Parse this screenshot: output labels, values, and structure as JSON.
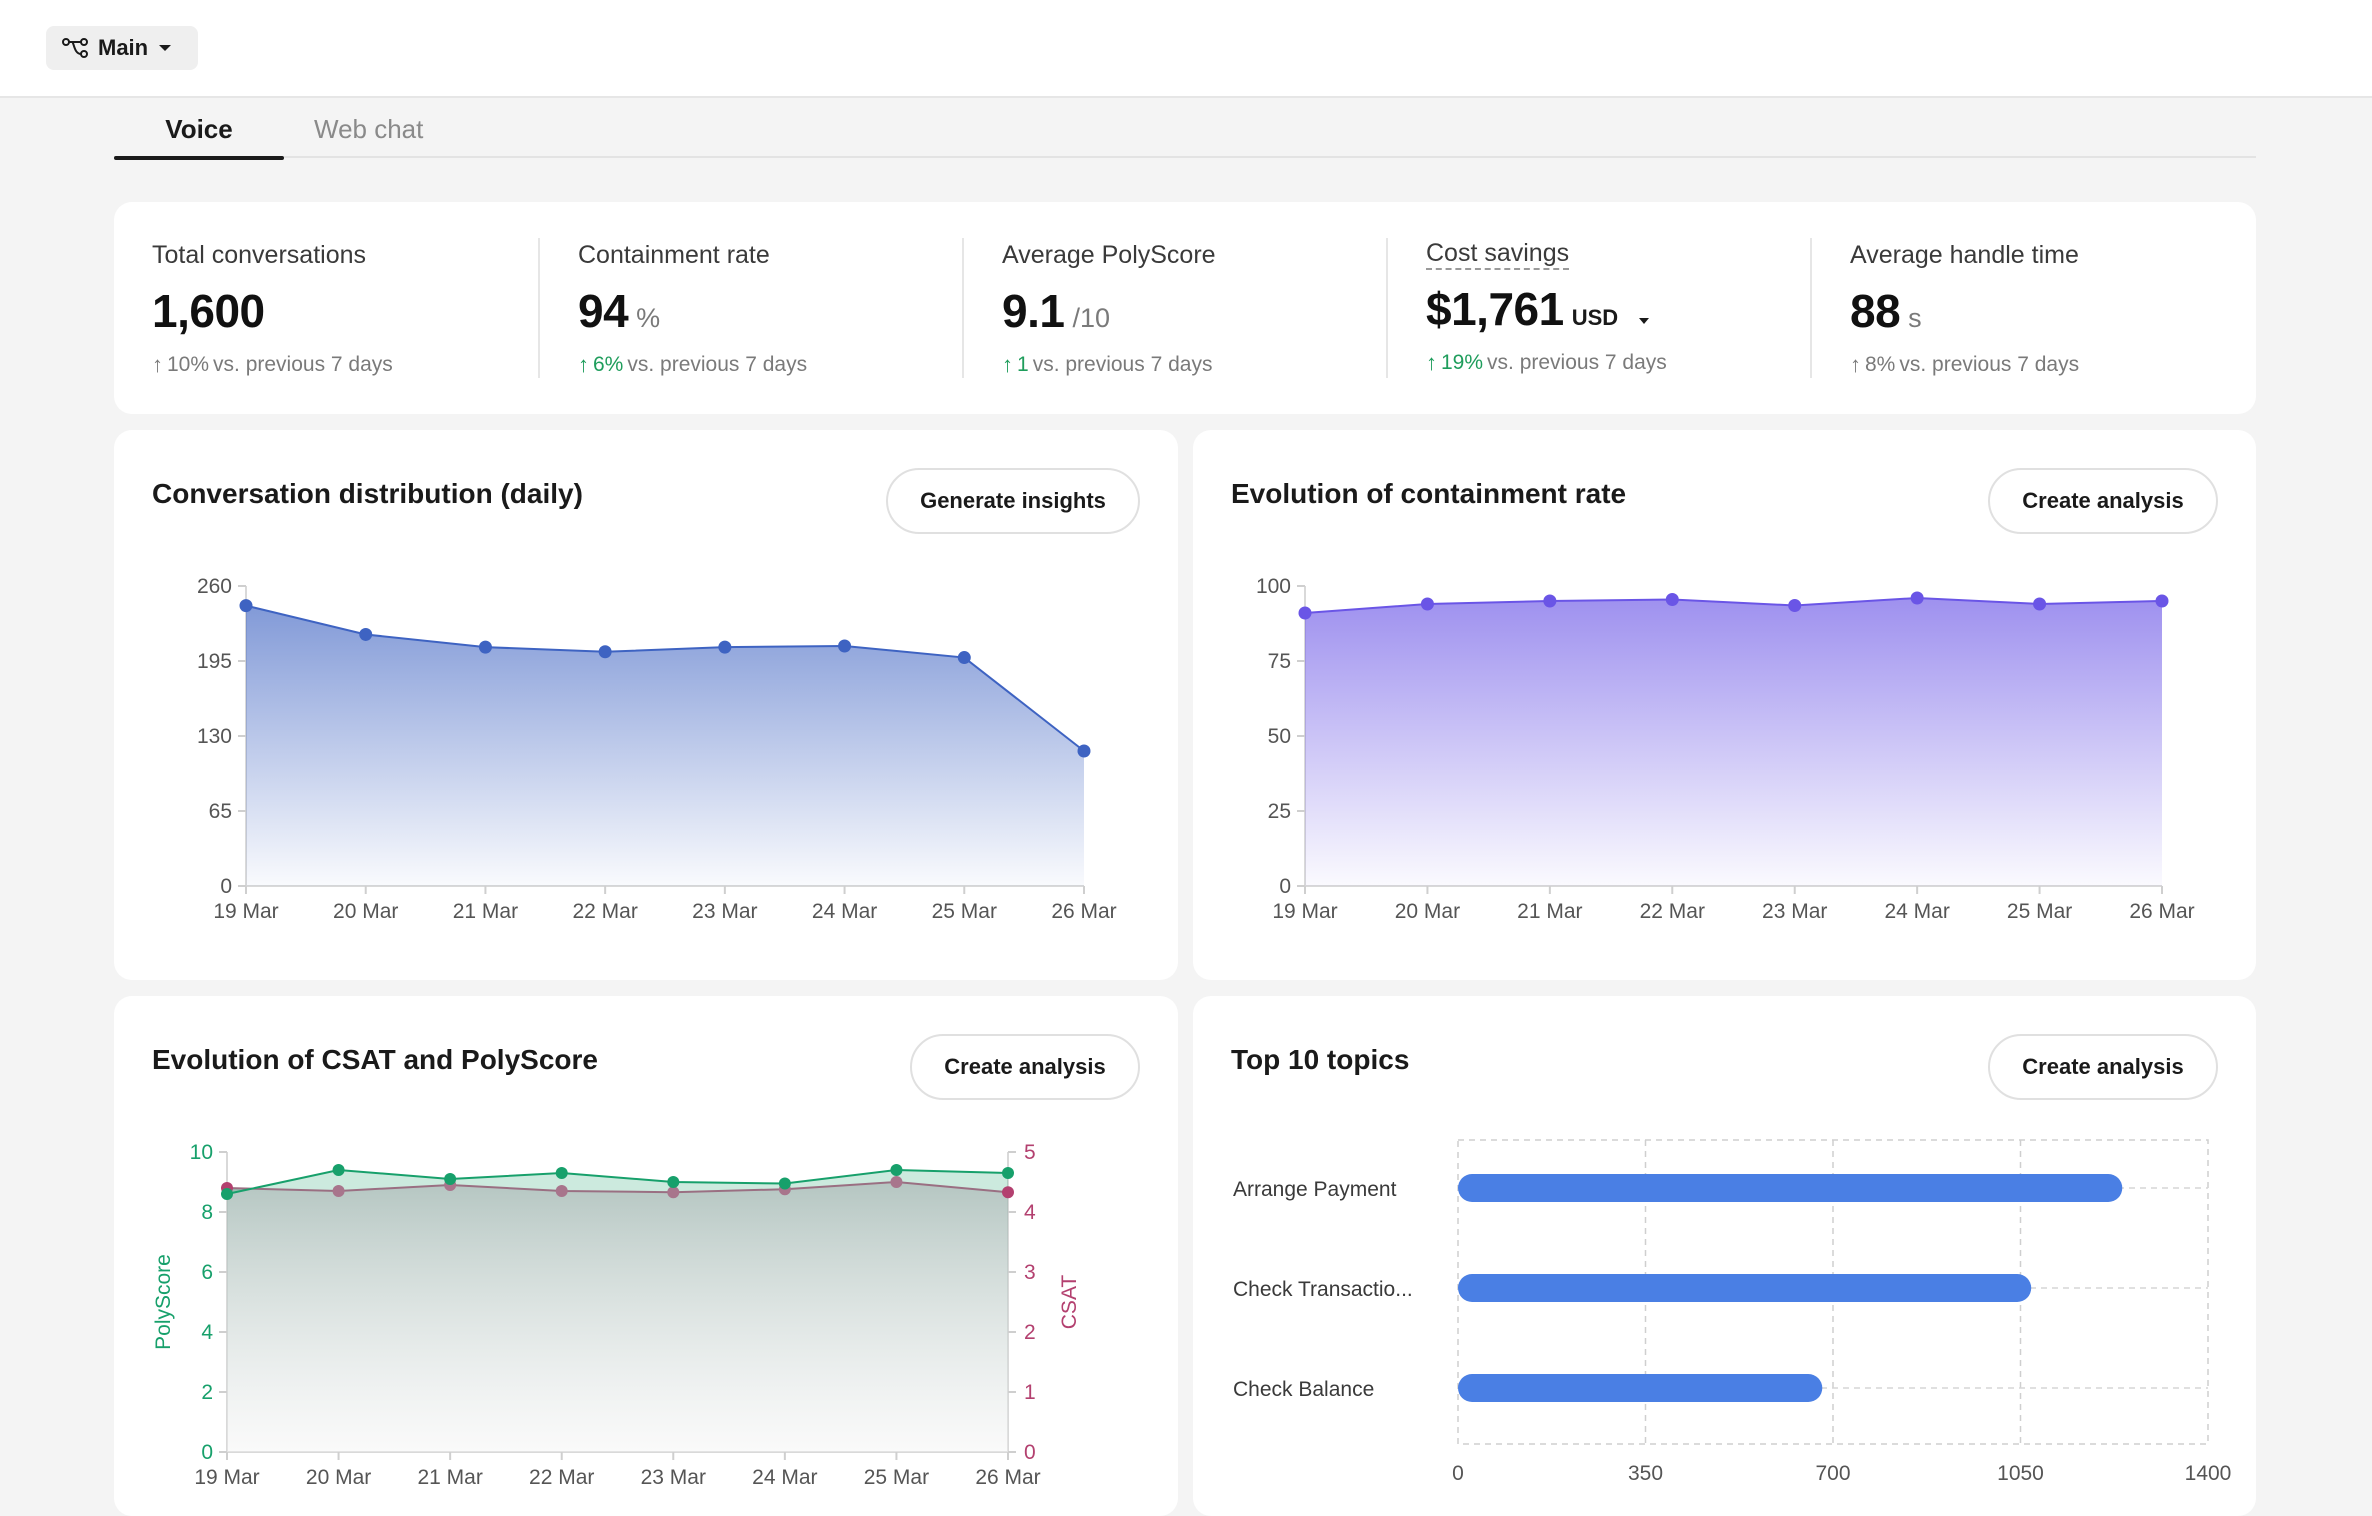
{
  "header": {
    "branch_label": "Main"
  },
  "tabs": [
    {
      "label": "Voice",
      "active": true
    },
    {
      "label": "Web chat",
      "active": false
    }
  ],
  "kpis": [
    {
      "label": "Total conversations",
      "value": "1,600",
      "unit": "",
      "trend_value": "10%",
      "trend_text": "vs. previous 7 days",
      "trend_positive_color": false
    },
    {
      "label": "Containment rate",
      "value": "94",
      "unit": "%",
      "trend_value": "6%",
      "trend_text": "vs. previous 7 days",
      "trend_positive_color": true
    },
    {
      "label": "Average PolyScore",
      "value": "9.1",
      "unit": "/10",
      "trend_value": "1",
      "trend_text": "vs. previous 7 days",
      "trend_positive_color": true
    },
    {
      "label": "Cost savings",
      "value": "$1,761",
      "unit": "USD",
      "trend_value": "19%",
      "trend_text": "vs. previous 7 days",
      "trend_positive_color": true
    },
    {
      "label": "Average handle time",
      "value": "88",
      "unit": "s",
      "trend_value": "8%",
      "trend_text": "vs. previous 7 days",
      "trend_positive_color": false
    }
  ],
  "colors": {
    "blue_series": "#3e63c2",
    "purple_series": "#6a55e6",
    "green_series": "#17a06b",
    "magenta_series": "#b3406f",
    "topic_bar": "#4a7fe4",
    "trend_green": "#1f9d5c"
  },
  "chart_data": [
    {
      "type": "area",
      "title": "Conversation distribution (daily)",
      "action_label": "Generate insights",
      "categories": [
        "19 Mar",
        "20 Mar",
        "21 Mar",
        "22 Mar",
        "23 Mar",
        "24 Mar",
        "25 Mar",
        "26 Mar"
      ],
      "series": [
        {
          "values": [
            243,
            218,
            207,
            203,
            207,
            208,
            198,
            117
          ]
        }
      ],
      "yticks": [
        0,
        65,
        130,
        195,
        260
      ],
      "ylim": [
        0,
        260
      ]
    },
    {
      "type": "area",
      "title": "Evolution of containment rate",
      "action_label": "Create analysis",
      "categories": [
        "19 Mar",
        "20 Mar",
        "21 Mar",
        "22 Mar",
        "23 Mar",
        "24 Mar",
        "25 Mar",
        "26 Mar"
      ],
      "series": [
        {
          "values": [
            91,
            94,
            95,
            95.5,
            93.5,
            96,
            94,
            95
          ]
        }
      ],
      "yticks": [
        0,
        25,
        50,
        75,
        100
      ],
      "ylim": [
        0,
        100
      ]
    },
    {
      "type": "line",
      "title": "Evolution of CSAT and PolyScore",
      "action_label": "Create analysis",
      "categories": [
        "19 Mar",
        "20 Mar",
        "21 Mar",
        "22 Mar",
        "23 Mar",
        "24 Mar",
        "25 Mar",
        "26 Mar"
      ],
      "series": [
        {
          "name": "PolyScore",
          "axis": "left",
          "values": [
            8.6,
            9.4,
            9.1,
            9.3,
            9.0,
            8.95,
            9.4,
            9.3
          ]
        },
        {
          "name": "CSAT",
          "axis": "right",
          "values": [
            4.4,
            4.35,
            4.45,
            4.35,
            4.33,
            4.38,
            4.5,
            4.33
          ]
        }
      ],
      "ylabel": "PolyScore",
      "ylabel_right": "CSAT",
      "yticks": [
        0,
        2,
        4,
        6,
        8,
        10
      ],
      "yticks_right": [
        0,
        1,
        2,
        3,
        4,
        5
      ],
      "ylim": [
        0,
        10
      ],
      "ylim_right": [
        0,
        5
      ]
    },
    {
      "type": "bar",
      "orientation": "horizontal",
      "title": "Top 10 topics",
      "action_label": "Create analysis",
      "categories": [
        "Arrange Payment",
        "Check Transactio...",
        "Check Balance"
      ],
      "values": [
        1240,
        1070,
        680
      ],
      "xticks": [
        0,
        350,
        700,
        1050,
        1400
      ],
      "xlim": [
        0,
        1400
      ]
    }
  ]
}
